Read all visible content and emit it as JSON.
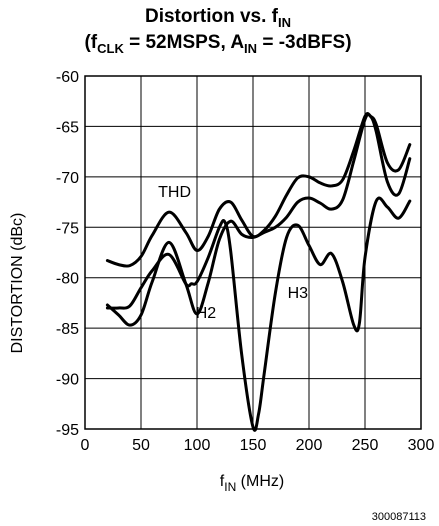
{
  "chart_data": {
    "type": "line",
    "title_main": "Distortion vs. f",
    "title_main_sub": "IN",
    "title_cond_open": "(f",
    "title_cond_clk_sub": "CLK",
    "title_cond_mid": " = 52MSPS, A",
    "title_cond_in_sub": "IN",
    "title_cond_end": " = -3dBFS)",
    "xlabel_main": "f",
    "xlabel_sub": "IN",
    "xlabel_unit": " (MHz)",
    "ylabel": "DISTORTION (dBc)",
    "xlim": [
      0,
      300
    ],
    "ylim": [
      -95,
      -60
    ],
    "x_ticks": [
      0,
      50,
      100,
      150,
      200,
      250,
      300
    ],
    "x_tick_labels": [
      "0",
      "50",
      "100",
      "150",
      "200",
      "250",
      "300"
    ],
    "y_ticks": [
      -60,
      -65,
      -70,
      -75,
      -80,
      -85,
      -90,
      -95
    ],
    "y_tick_labels": [
      "-60",
      "-65",
      "-70",
      "-75",
      "-80",
      "-85",
      "-90",
      "-95"
    ],
    "grid": true,
    "series": [
      {
        "name": "THD",
        "x": [
          20,
          30,
          40,
          50,
          60,
          75,
          90,
          100,
          110,
          120,
          130,
          140,
          150,
          160,
          170,
          180,
          190,
          200,
          210,
          220,
          230,
          240,
          250,
          255,
          260,
          270,
          280,
          290
        ],
        "y": [
          -78.3,
          -78.7,
          -78.8,
          -77.9,
          -75.8,
          -73.5,
          -75.5,
          -77.3,
          -75.9,
          -73.2,
          -72.5,
          -74.3,
          -75.9,
          -75.3,
          -73.9,
          -71.8,
          -70.1,
          -70.0,
          -70.6,
          -70.9,
          -70.3,
          -67.4,
          -64.0,
          -64.0,
          -64.8,
          -68.6,
          -69.3,
          -66.8
        ]
      },
      {
        "name": "H2",
        "x": [
          20,
          30,
          40,
          50,
          60,
          75,
          90,
          100,
          110,
          120,
          130,
          140,
          150,
          160,
          170,
          180,
          190,
          200,
          210,
          220,
          230,
          240,
          250,
          255,
          260,
          270,
          280,
          290
        ],
        "y": [
          -82.7,
          -83.7,
          -84.7,
          -83.7,
          -80.4,
          -76.5,
          -80.6,
          -83.6,
          -80.5,
          -76.2,
          -74.4,
          -75.7,
          -76.0,
          -75.5,
          -75.0,
          -74.0,
          -72.5,
          -72.1,
          -72.6,
          -73.2,
          -72.3,
          -68.4,
          -64.3,
          -64.0,
          -65.5,
          -70.5,
          -71.7,
          -68.2
        ]
      },
      {
        "name": "H3",
        "x": [
          20,
          30,
          40,
          50,
          60,
          75,
          90,
          95,
          100,
          110,
          120,
          125,
          130,
          140,
          150,
          155,
          160,
          170,
          180,
          190,
          200,
          210,
          220,
          230,
          240,
          245,
          250,
          260,
          270,
          280,
          290
        ],
        "y": [
          -83.0,
          -83.0,
          -82.8,
          -81.0,
          -79.3,
          -77.7,
          -80.6,
          -80.6,
          -80.4,
          -78.0,
          -75.0,
          -74.5,
          -77.3,
          -87.7,
          -94.8,
          -93.5,
          -89.5,
          -81.5,
          -76.0,
          -74.8,
          -76.8,
          -78.7,
          -77.6,
          -80.4,
          -84.7,
          -84.5,
          -78.0,
          -72.4,
          -73.0,
          -74.1,
          -72.4
        ]
      }
    ],
    "annotations": [
      {
        "text": "THD",
        "x": 80,
        "y": -72
      },
      {
        "text": "H2",
        "x": 108,
        "y": -84
      },
      {
        "text": "H3",
        "x": 190,
        "y": -82
      }
    ]
  },
  "figure_id": "300087113"
}
